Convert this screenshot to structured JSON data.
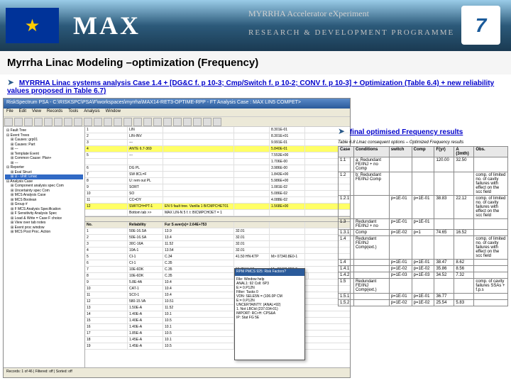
{
  "header": {
    "max": "MAX",
    "sub1": "MYRRHA Accelerator eXperiment",
    "sub2": "RESEARCH & DEVELOPMENT PROGRAMME",
    "fp7": "7"
  },
  "title": "Myrrha Linac Modeling –optimization (Frequency)",
  "bullet1": "MYRRHA Linac systems analysis Case 1.4 + [DG&C f. p 10-3; Cmp/Switch f. p 10-2; CONV f. p 10-3] + Optimization (Table 6.4) + new reliability values proposed in Table 6.7)",
  "app": {
    "title": "RiskSpectrum PSA - C:\\RISKSPC\\PSA\\F\\workspaces\\myrrha\\MAX14-RET3-OPTIME-RPP - FT Analysis Case : MAX LIN5 COMPET>",
    "menus": [
      "File",
      "Edit",
      "View",
      "Records",
      "Tools",
      "Analysis",
      "Window"
    ],
    "top_rows": [
      [
        "1",
        "LIN",
        "",
        "",
        "8.301E-01"
      ],
      [
        "2",
        "LIN-INV",
        "",
        "",
        "8.301E+01"
      ],
      [
        "3",
        "---",
        "",
        "",
        "9.991E-01"
      ],
      [
        "4",
        "ANTE 6.7-369",
        "",
        "",
        "5.840E-01"
      ],
      [
        "5",
        "---",
        "",
        "",
        "7.553E+00"
      ]
    ],
    "mid_rows": [
      [
        "",
        "",
        "",
        "",
        "1.706E-00"
      ],
      [
        "6",
        "DG PL",
        "",
        "",
        "3.986E-00"
      ],
      [
        "7",
        "SW 8CL=F",
        "",
        "",
        "1.843E+00"
      ],
      [
        "8",
        "U: rem out PL",
        "",
        "",
        "5.986E+00"
      ],
      [
        "9",
        "SORT",
        "",
        "",
        "1.081E-02"
      ],
      [
        "10",
        "SO",
        "",
        "",
        "5.086E-02"
      ],
      [
        "11",
        "CC=DY",
        "",
        "",
        "4.088E-02"
      ],
      [
        "12",
        "SWITCH=PT-1",
        "EN 5 fault tree. Vanilla 1 B/CMPCHET01",
        "",
        "1.568E+00"
      ],
      [
        "",
        "Bottom tab >>",
        "MAX LIN-N 5 f. t: BICMPCHOET = 1",
        "",
        ""
      ]
    ],
    "tree": [
      {
        "t": "Fault Tree",
        "l": 0
      },
      {
        "t": "Event Trees",
        "l": 0
      },
      {
        "t": "Causes: grp01",
        "l": 1
      },
      {
        "t": "Causes: Part",
        "l": 1
      },
      {
        "t": "---",
        "l": 1
      },
      {
        "t": "Template Event",
        "l": 1
      },
      {
        "t": "Common Cause: Plan+",
        "l": 1
      },
      {
        "t": "---",
        "l": 1
      },
      {
        "t": "Reporter",
        "l": 0
      },
      {
        "t": "Eval Struct",
        "l": 1
      },
      {
        "t": "U - Unit: Linac",
        "l": 1,
        "sel": true
      },
      {
        "t": "Analysis Case",
        "l": 0
      },
      {
        "t": "Component analysis spec Com",
        "l": 1
      },
      {
        "t": "Uncertainty spec Com",
        "l": 1
      },
      {
        "t": "MCS Analysis Case",
        "l": 1
      },
      {
        "t": "MCS Boolean",
        "l": 1
      },
      {
        "t": "Group #",
        "l": 1
      },
      {
        "t": "F MCS Analysis Specification",
        "l": 1
      },
      {
        "t": "F Sensitivity Analysis Spec",
        "l": 1
      },
      {
        "t": "Load & Write = Case F choice",
        "l": 1
      },
      {
        "t": "View over tab notes",
        "l": 1
      },
      {
        "t": "Event proc window",
        "l": 1
      },
      {
        "t": "MCS Post Proc. Action",
        "l": 1
      }
    ],
    "grid2_hdr": [
      "No.",
      "Reliability",
      "Fur S aver(s)= 2.64E+753",
      "",
      ""
    ],
    "grid2_rows": [
      [
        "1",
        "50E-16.SA",
        "13.9",
        "32.01",
        ""
      ],
      [
        "2",
        "50E-16.SA",
        "13.4",
        "32.01",
        ""
      ],
      [
        "3",
        "30C-16A",
        "11.52",
        "32.01",
        ""
      ],
      [
        "4",
        "10A-1",
        "13.54",
        "32.01",
        ""
      ],
      [
        "5",
        "CI-1",
        "C.34",
        "41.50 HN-KTP",
        "M> 07340.8E0-1"
      ],
      [
        "6",
        "CI-1",
        "C.35",
        "",
        ""
      ],
      [
        "7",
        "10E-6DK",
        "C.35",
        "50;7M N-10",
        "M> 00400.8E0-5"
      ],
      [
        "8",
        "10E-6DK",
        "C.35",
        "50;7M 1-VB",
        "",
        ""
      ],
      [
        "9",
        "5.8E-4A",
        "10.4",
        "62.01 ++V-KTP",
        "M: 82044.8E0-4"
      ],
      [
        "10",
        "CAT-1",
        "10.4",
        "",
        ""
      ],
      [
        "11",
        "SC0-1",
        "10.4",
        "40.50 C04++KTP",
        "M: SC05.8E0"
      ],
      [
        "12",
        "580-15.VA",
        "10.51",
        "m5.01 5W-VKB",
        "SE-CA.04=SPP5"
      ],
      [
        "13",
        "1.50E-A",
        "11.52",
        "M5.0L 1-VPQ",
        "M0N.TPC.MVT"
      ],
      [
        "14",
        "1.40E-A",
        "10.1",
        "M5.0L VPQ-2",
        "FPPV0.VE-EK"
      ],
      [
        "15",
        "1.40E-A",
        "10.5",
        "M5.0L SVPH",
        "SK1OVM-KPE"
      ],
      [
        "16",
        "1.40E-A",
        "10.1",
        "55.01 C04++KM",
        ""
      ],
      [
        "17",
        "1.85E-A",
        "10.5",
        "55.01 SW-VLB3",
        ""
      ],
      [
        "18",
        "1.45E-A",
        "10.1",
        "55.02 SW-VLB",
        ""
      ],
      [
        "19",
        "1.45E-A",
        "10.5",
        "55.01 SW-VLB",
        ""
      ]
    ]
  },
  "popup": {
    "title": "RPM PMCS 925: Risk Factors?",
    "lines": [
      "File: Window help",
      "ANAL1: 92 Coll: 6P3",
      "E:= 0.P12N",
      "Filter: Tasks 0",
      "VDN: SELE5N = (106.0P CM",
      "E:= 0.P12N",
      "",
      "UNCERTAINTY: (ANAL=92)",
      "",
      "1. Not LBCtd (237.034-01)",
      "",
      "IMPORT: RC>H: CPS&A",
      "IP: Stat FG 5E"
    ]
  },
  "results": {
    "label": "final optimised Frequency results",
    "table_title": "Table 6.8 Linac consequent options – Optimized Frequency results",
    "headers": [
      "Case",
      "Conditions",
      "switch",
      "Comp",
      "F(yr)",
      "A (3mth)",
      "Obs."
    ],
    "rows": [
      {
        "case": "1.1",
        "cond": "a: Redundant FE/INJ + no Comp",
        "sw": "",
        "comp": "",
        "fy": "120.00",
        "a": "32.50",
        "obs": ""
      },
      {
        "case": "1.2",
        "cond": "b: Redundant FE/INJ Comp",
        "sw": "",
        "comp": "",
        "fy": "",
        "a": "",
        "obs": "comp. of limited no. of cavity failures with effect on the scc field"
      },
      {
        "case": "1.2.1",
        "cond": "",
        "sw": "p=1E-01",
        "comp": "p=1E-01",
        "fy": "38.83",
        "a": "22.12",
        "obs": "comp. of limited no. of cavity failures with effect on the scc field"
      },
      {
        "case": "1.3",
        "cond": "Redundant FE/INJ + no",
        "sw": "p=1E-01",
        "comp": "p=1E-01",
        "fy": "",
        "a": "",
        "obs": ""
      },
      {
        "case": "1.3.1",
        "cond": "Comp",
        "sw": "p=1E-02",
        "comp": "p=1",
        "fy": "74.65",
        "a": "16.52",
        "obs": ""
      },
      {
        "case": "1.4",
        "cond": "Redundant FE/INJ Comp(ext.)",
        "sw": "",
        "comp": "",
        "fy": "",
        "a": "",
        "obs": "comp. of limited no. of cavity failures with effect on the scc field"
      },
      {
        "case": "1.4",
        "cond": "",
        "sw": "p=1E-01",
        "comp": "p=1E-01",
        "fy": "38.47",
        "a": "8.62",
        "obs": ""
      },
      {
        "case": "1.4.1",
        "cond": "",
        "sw": "p=1E-02",
        "comp": "p=1E-02",
        "fy": "35.86",
        "a": "8.56",
        "obs": ""
      },
      {
        "case": "1.4.2",
        "cond": "",
        "sw": "p=1E-03",
        "comp": "p=1E-03",
        "fy": "34.52",
        "a": "7.32",
        "obs": ""
      },
      {
        "case": "1.5",
        "cond": "Redundant FE/INJ Comp(ext.)",
        "sw": "",
        "comp": "",
        "fy": "",
        "a": "",
        "obs": "comp. of cavity failures SSAs + f.p.s"
      },
      {
        "case": "1.5.1",
        "cond": "",
        "sw": "p=1E-01",
        "comp": "p=1E-01",
        "fy": "36.77",
        "a": "",
        "obs": ""
      },
      {
        "case": "1.5.2",
        "cond": "",
        "sw": "p=1E-02",
        "comp": "p=1E-02",
        "fy": "25.54",
        "a": "5.83",
        "obs": ""
      }
    ]
  }
}
